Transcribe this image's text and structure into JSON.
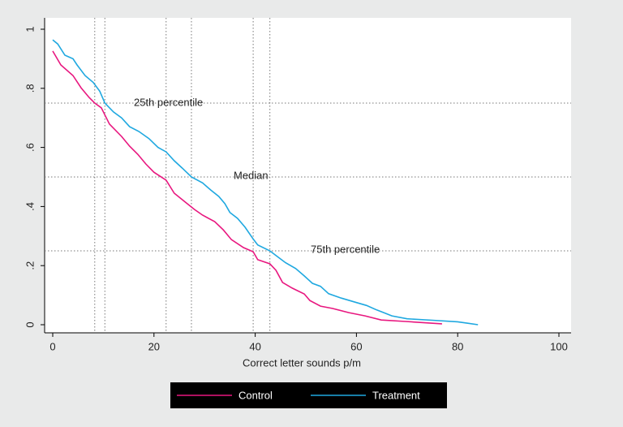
{
  "chart_data": {
    "type": "line",
    "xlabel": "Correct letter sounds p/m",
    "xlim": [
      0,
      100
    ],
    "xticks": [
      0,
      20,
      40,
      60,
      80,
      100
    ],
    "ylim": [
      0,
      1
    ],
    "yticks": [
      0,
      {
        "value": 0.2,
        "label": ".2"
      },
      {
        "value": 0.4,
        "label": ".4"
      },
      {
        "value": 0.6,
        "label": ".6"
      },
      {
        "value": 0.8,
        "label": ".8"
      },
      1
    ],
    "hlines": [
      0.75,
      0.5,
      0.25
    ],
    "vlines": [
      8.3,
      10.3,
      22.4,
      27.4,
      39.6,
      42.9
    ],
    "annotations": [
      "25th percentile",
      "Median",
      "75th percentile"
    ],
    "legend": "bottom",
    "series": [
      {
        "name": "Control",
        "color": "#e8177f",
        "x": [
          0,
          1.6,
          4,
          5.6,
          7.2,
          8.3,
          9.6,
          11.2,
          13.6,
          15.2,
          16.8,
          18.4,
          20,
          22.4,
          24,
          26.4,
          28,
          29.6,
          32,
          33.7,
          35.3,
          37.7,
          39.6,
          40.5,
          42.9,
          44.1,
          45.4,
          47.3,
          49.7,
          50.8,
          52.9,
          55.3,
          58.5,
          61.7,
          64.9,
          69.7,
          76.9
        ],
        "values": [
          0.926,
          0.879,
          0.843,
          0.802,
          0.769,
          0.75,
          0.734,
          0.679,
          0.637,
          0.604,
          0.577,
          0.544,
          0.516,
          0.489,
          0.445,
          0.412,
          0.39,
          0.371,
          0.349,
          0.321,
          0.288,
          0.261,
          0.247,
          0.22,
          0.206,
          0.184,
          0.143,
          0.124,
          0.104,
          0.082,
          0.063,
          0.055,
          0.041,
          0.03,
          0.016,
          0.011,
          0.003
        ]
      },
      {
        "name": "Treatment",
        "color": "#1fa8e0",
        "x": [
          0,
          1,
          2.4,
          4,
          4.8,
          6.4,
          8,
          9.3,
          10.3,
          12,
          13.6,
          15.2,
          17,
          19,
          20.8,
          22.4,
          24,
          25.6,
          27.4,
          29.6,
          31.2,
          32.8,
          34,
          35,
          36.5,
          38,
          39.6,
          40.5,
          42.9,
          44.1,
          46,
          48,
          49.7,
          51.3,
          52.9,
          54.5,
          57,
          60,
          62,
          64,
          65.5,
          67,
          70,
          75,
          80,
          82,
          84
        ],
        "values": [
          0.964,
          0.95,
          0.912,
          0.9,
          0.879,
          0.843,
          0.82,
          0.79,
          0.75,
          0.72,
          0.7,
          0.67,
          0.654,
          0.63,
          0.6,
          0.585,
          0.555,
          0.53,
          0.5,
          0.48,
          0.456,
          0.434,
          0.41,
          0.38,
          0.36,
          0.33,
          0.29,
          0.27,
          0.25,
          0.234,
          0.21,
          0.19,
          0.165,
          0.14,
          0.13,
          0.105,
          0.09,
          0.075,
          0.065,
          0.05,
          0.04,
          0.03,
          0.02,
          0.015,
          0.01,
          0.005,
          0
        ]
      }
    ]
  }
}
